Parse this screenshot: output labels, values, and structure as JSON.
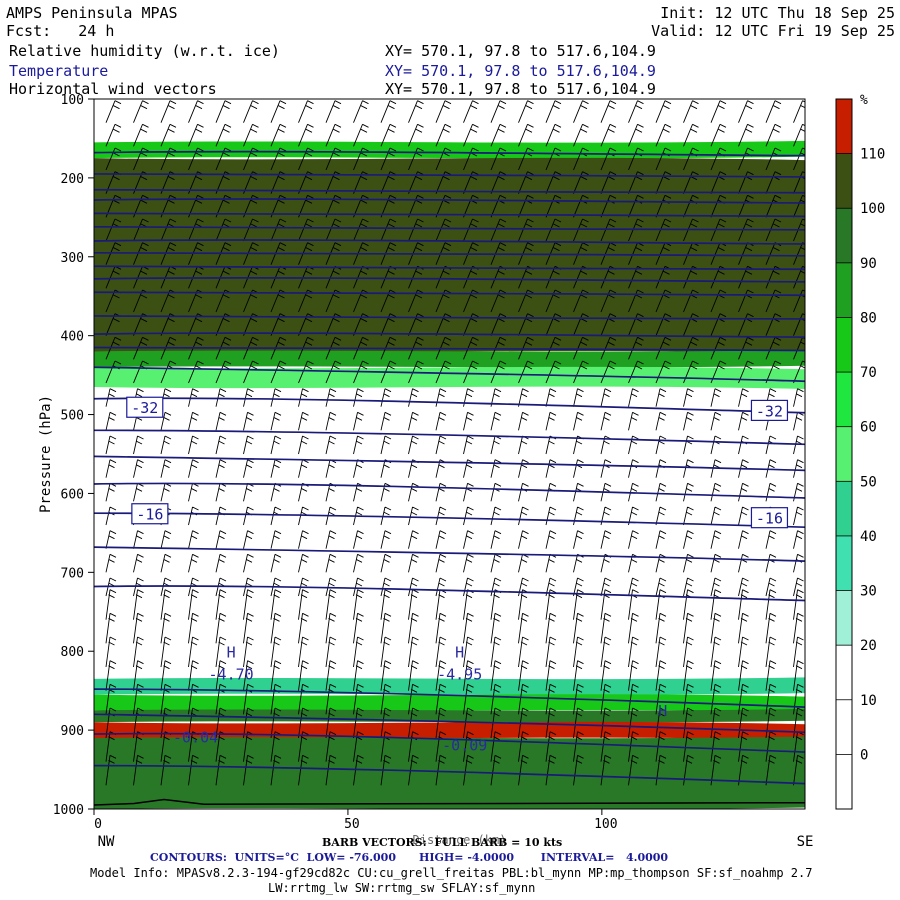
{
  "header": {
    "model": "AMPS Peninsula MPAS",
    "forecast": "Fcst:   24 h",
    "init": "Init: 12 UTC Thu 18 Sep 25",
    "valid": "Valid: 12 UTC Fri 19 Sep 25",
    "fields": [
      {
        "name": "Relative humidity (w.r.t. ice)",
        "xy": "XY= 570.1, 97.8 to 517.6,104.9"
      },
      {
        "name": "Temperature",
        "xy": "XY= 570.1, 97.8 to 517.6,104.9"
      },
      {
        "name": "Horizontal wind vectors",
        "xy": "XY= 570.1, 97.8 to 517.6,104.9"
      }
    ]
  },
  "chart_data": {
    "type": "heatmap",
    "ylabel": "Pressure (hPa)",
    "xlabel": "Distance (km)",
    "x_range": [
      0,
      140
    ],
    "y_range": [
      1000,
      100
    ],
    "x_ticks": [
      0,
      50,
      100
    ],
    "y_ticks": [
      100,
      200,
      300,
      400,
      500,
      600,
      700,
      800,
      900,
      1000
    ],
    "x_end_labels": {
      "left": "NW",
      "right": "SE"
    },
    "colorbar": {
      "unit": "%",
      "levels": [
        110,
        100,
        90,
        80,
        70,
        60,
        50,
        40,
        30,
        20,
        10,
        0
      ],
      "colors": [
        "#c81e00",
        "#3c5014",
        "#287828",
        "#20a020",
        "#18c818",
        "#20e640",
        "#58f070",
        "#30d090",
        "#40e0b0",
        "#a0f0d8",
        "#ffffff",
        "#ffffff",
        "#ffffff"
      ]
    },
    "rh_layers": [
      {
        "p_top": 155,
        "p_bottom": 175,
        "rh": 70
      },
      {
        "p_top": 175,
        "p_bottom": 420,
        "rh": 102
      },
      {
        "p_top": 420,
        "p_bottom": 440,
        "rh": 85
      },
      {
        "p_top": 440,
        "p_bottom": 465,
        "rh": 55
      },
      {
        "p_top": 835,
        "p_bottom": 855,
        "rh": 40
      },
      {
        "p_top": 855,
        "p_bottom": 875,
        "rh": 75
      },
      {
        "p_top": 875,
        "p_bottom": 890,
        "rh": 95
      },
      {
        "p_top": 890,
        "p_bottom": 910,
        "rh": 112
      },
      {
        "p_top": 910,
        "p_bottom": 1000,
        "rh": 95
      }
    ],
    "temperature_contours_hPa": [
      168,
      195,
      215,
      228,
      245,
      262,
      280,
      295,
      312,
      328,
      345,
      375,
      398,
      415,
      440,
      480,
      520,
      553,
      588,
      625,
      668,
      718,
      848,
      880,
      905,
      945
    ],
    "contour_labels": [
      {
        "text": "-32",
        "x": 10,
        "p": 492
      },
      {
        "text": "-32",
        "x": 133,
        "p": 496
      },
      {
        "text": "-16",
        "x": 11,
        "p": 627
      },
      {
        "text": "-16",
        "x": 133,
        "p": 632
      }
    ],
    "extrema": [
      {
        "mark": "H",
        "value": "-4.70",
        "x": 27,
        "p": 808
      },
      {
        "mark": "H",
        "value": "-4.95",
        "x": 72,
        "p": 808
      },
      {
        "mark": "H",
        "value": "",
        "x": 112,
        "p": 882
      },
      {
        "mark": "",
        "value": "-0.04",
        "x": 20,
        "p": 888
      },
      {
        "mark": "",
        "value": "-0.09",
        "x": 73,
        "p": 898
      }
    ]
  },
  "footer": {
    "barb_line": "BARB VECTORS:  FULL BARB = 10 kts",
    "contours_line": "CONTOURS:  UNITS=°C  LOW= -76.000      HIGH= -4.0000       INTERVAL=   4.0000",
    "model_info": "Model Info: MPASv8.2.3-194-gf29cd82c CU:cu_grell_freitas PBL:bl_mynn MP:mp_thompson SF:sf_noahmp 2.7",
    "model_info2": "LW:rrtmg_lw SW:rrtmg_sw SFLAY:sf_mynn"
  }
}
